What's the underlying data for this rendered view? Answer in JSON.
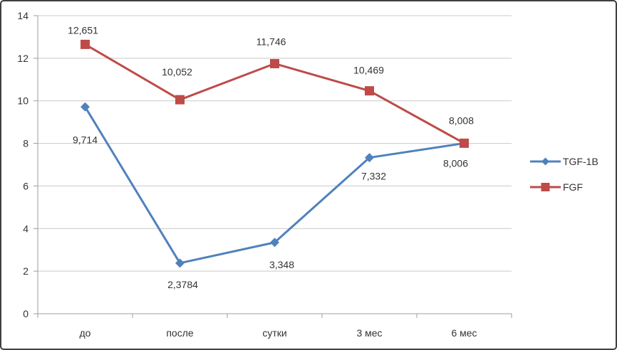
{
  "chart_data": {
    "type": "line",
    "categories": [
      "до",
      "после",
      "сутки",
      "3 мес",
      "6 мес"
    ],
    "series": [
      {
        "name": "TGF-1B",
        "color": "#4f81bd",
        "marker": "diamond",
        "values": [
          9.714,
          2.3784,
          3.348,
          7.332,
          8.006
        ],
        "labels": [
          "9,714",
          "2,3784",
          "3,348",
          "7,332",
          "8,006"
        ],
        "label_offsets": [
          [
            0,
            46
          ],
          [
            4,
            30
          ],
          [
            10,
            31
          ],
          [
            6,
            26
          ],
          [
            -12,
            28
          ]
        ]
      },
      {
        "name": "FGF",
        "color": "#be4b48",
        "marker": "square",
        "values": [
          12.651,
          10.052,
          11.746,
          10.469,
          8.008
        ],
        "labels": [
          "12,651",
          "10,052",
          "11,746",
          "10,469",
          "8,008"
        ],
        "label_offsets": [
          [
            -3,
            -20
          ],
          [
            -4,
            -39
          ],
          [
            -5,
            -31
          ],
          [
            -1,
            -29
          ],
          [
            -4,
            -32
          ]
        ]
      }
    ],
    "y_ticks": [
      0,
      2,
      4,
      6,
      8,
      10,
      12,
      14
    ],
    "y_tick_labels": [
      "0",
      "2",
      "4",
      "6",
      "8",
      "10",
      "12",
      "14"
    ],
    "ylim": [
      0,
      14
    ],
    "grid": true,
    "legend_position": "right",
    "colors": {
      "gridline": "#c9c9c9",
      "axis": "#9c9c9c",
      "text": "#333333"
    }
  }
}
